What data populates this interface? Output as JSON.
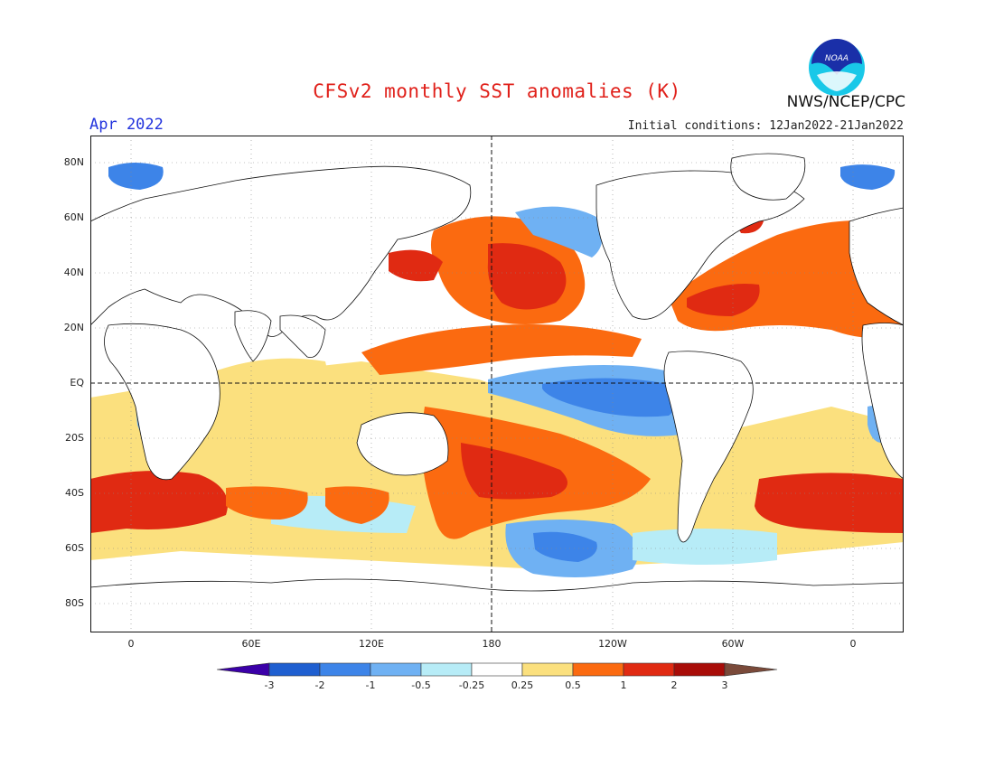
{
  "header": {
    "title": "CFSv2 monthly SST anomalies (K)",
    "month": "Apr 2022",
    "initial_conditions": "Initial conditions: 12Jan2022-21Jan2022",
    "org": "NWS/NCEP/CPC",
    "logo_text": "NOAA"
  },
  "axes": {
    "y_ticks": [
      "80N",
      "60N",
      "40N",
      "20N",
      "EQ",
      "20S",
      "40S",
      "60S",
      "80S"
    ],
    "x_ticks": [
      "0",
      "60E",
      "120E",
      "180",
      "120W",
      "60W",
      "0"
    ]
  },
  "colorbar": {
    "labels": [
      "-3",
      "-2",
      "-1",
      "-0.5",
      "-0.25",
      "0.25",
      "0.5",
      "1",
      "2",
      "3"
    ],
    "colors": [
      "#3b00a8",
      "#1f5fd0",
      "#3d84e8",
      "#6fb1f3",
      "#b7ecf7",
      "#ffffff",
      "#fbe07e",
      "#fb6a10",
      "#e02a12",
      "#a80c08",
      "#7a4a3a"
    ]
  }
}
